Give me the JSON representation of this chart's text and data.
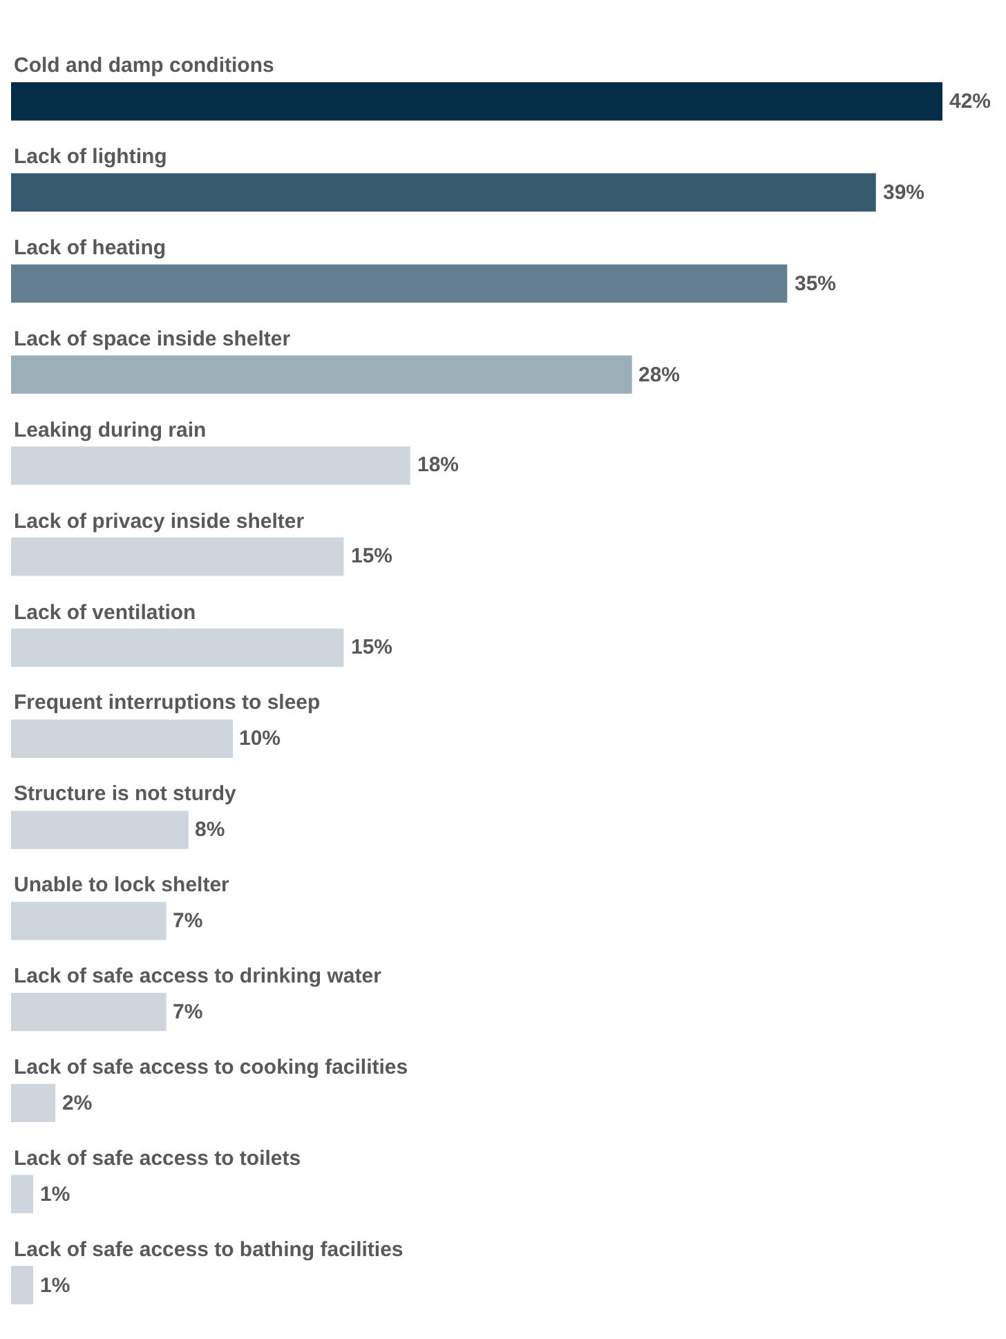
{
  "chart_data": {
    "type": "bar",
    "orientation": "horizontal",
    "relative": false,
    "tick_labels": false,
    "categories": [
      "Cold and damp conditions",
      "Lack of lighting",
      "Lack of heating",
      "Lack of space inside shelter",
      "Leaking during rain",
      "Lack of privacy inside shelter",
      "Lack of ventilation",
      "Frequent interruptions to sleep",
      "Structure is not sturdy",
      "Unable to lock shelter",
      "Lack of safe access to drinking water",
      "Lack of safe access to cooking facilities",
      "Lack of safe access to toilets",
      "Lack of safe access to bathing facilities"
    ],
    "values": [
      42,
      39,
      35,
      28,
      18,
      15,
      15,
      10,
      8,
      7,
      7,
      2,
      1,
      1
    ],
    "value_labels": [
      "42%",
      "39%",
      "35%",
      "28%",
      "18%",
      "15%",
      "15%",
      "10%",
      "8%",
      "7%",
      "7%",
      "2%",
      "1%",
      "1%"
    ],
    "colors": [
      "#062d48",
      "#375a70",
      "#627e8f",
      "#9aafb8",
      "#cdd6dd",
      "#cdd6dd",
      "#cdd6dd",
      "#cdd6dd",
      "#cdd6dd",
      "#cdd6dd",
      "#cdd6dd",
      "#cdd6dd",
      "#cdd6dd",
      "#cdd6dd"
    ],
    "xlim": [
      0,
      42
    ]
  }
}
